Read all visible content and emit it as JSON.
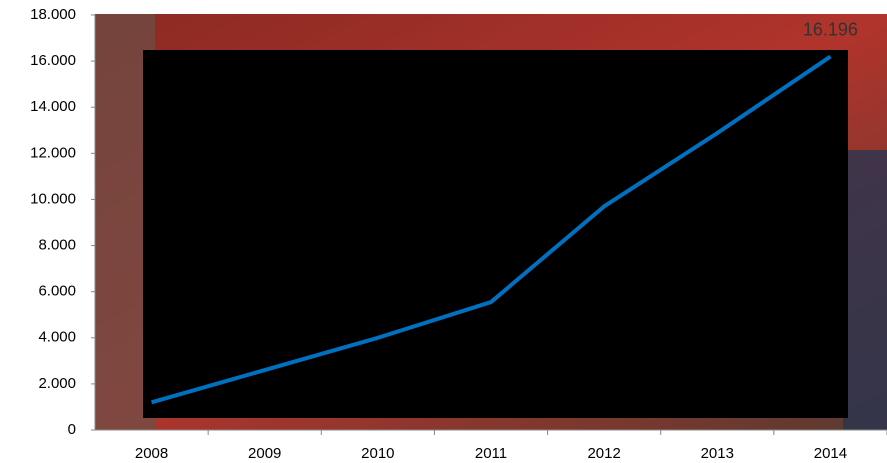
{
  "chart_data": {
    "type": "line",
    "categories": [
      "2008",
      "2009",
      "2010",
      "2011",
      "2012",
      "2013",
      "2014"
    ],
    "series": [
      {
        "color": "#0070c0",
        "values": [
          1200,
          2600,
          4000,
          5550,
          9700,
          12880,
          16196
        ],
        "value_labels": [
          null,
          null,
          null,
          null,
          null,
          null,
          "16.196"
        ]
      }
    ],
    "ylim": [
      0,
      18000
    ],
    "yticks": [
      {
        "value": 0,
        "label": "0"
      },
      {
        "value": 2000,
        "label": "2.000"
      },
      {
        "value": 4000,
        "label": "4.000"
      },
      {
        "value": 6000,
        "label": "6.000"
      },
      {
        "value": 8000,
        "label": "8.000"
      },
      {
        "value": 10000,
        "label": "10.000"
      },
      {
        "value": 12000,
        "label": "12.000"
      },
      {
        "value": 14000,
        "label": "14.000"
      },
      {
        "value": 16000,
        "label": "16.000"
      },
      {
        "value": 18000,
        "label": "18.000"
      }
    ]
  }
}
